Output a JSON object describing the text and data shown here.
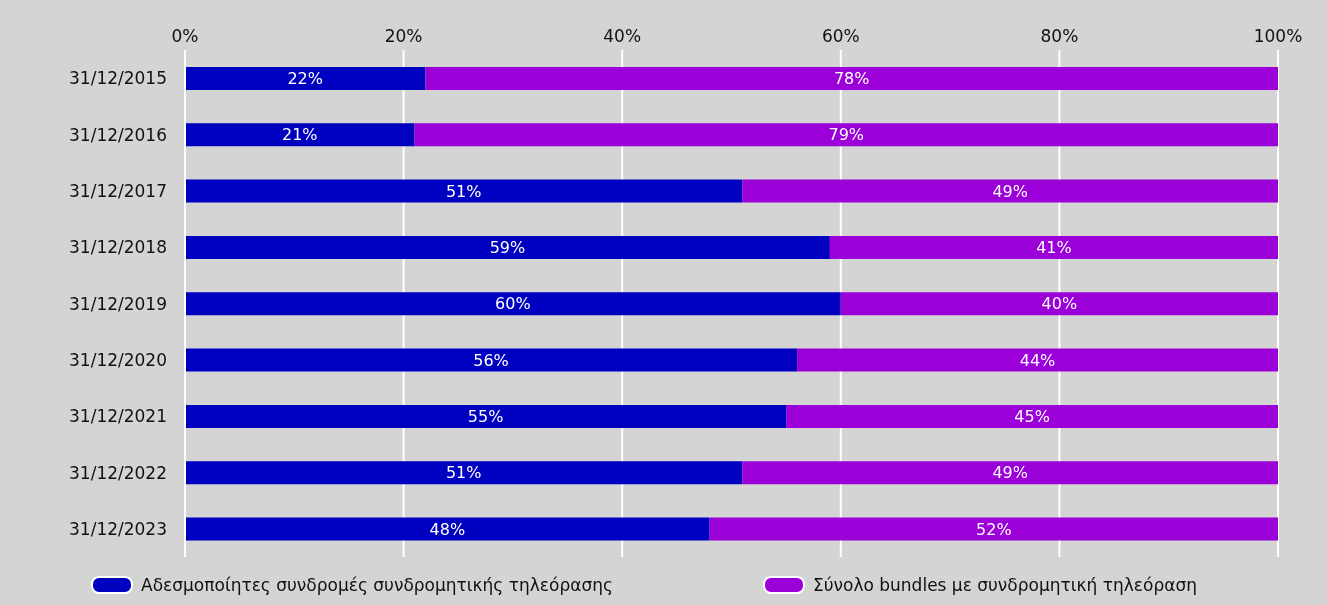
{
  "chart_data": {
    "type": "bar",
    "orientation": "horizontal",
    "stacked": true,
    "categories": [
      "31/12/2015",
      "31/12/2016",
      "31/12/2017",
      "31/12/2018",
      "31/12/2019",
      "31/12/2020",
      "31/12/2021",
      "31/12/2022",
      "31/12/2023"
    ],
    "series": [
      {
        "name": "Αδεσμοποίητες συνδρομές συνδρομητικής τηλεόρασης",
        "color": "#0000c0",
        "values": [
          22,
          21,
          51,
          59,
          60,
          56,
          55,
          51,
          48
        ],
        "value_labels": [
          "22%",
          "21%",
          "51%",
          "59%",
          "60%",
          "56%",
          "55%",
          "51%",
          "48%"
        ]
      },
      {
        "name": "Σύνολο bundles με συνδρομητική τηλεόραση",
        "color": "#9b00d9",
        "values": [
          78,
          79,
          49,
          41,
          40,
          44,
          45,
          49,
          52
        ],
        "value_labels": [
          "78%",
          "79%",
          "49%",
          "41%",
          "40%",
          "44%",
          "45%",
          "49%",
          "52%"
        ]
      }
    ],
    "xlim": [
      0,
      100
    ],
    "xticks": [
      {
        "value": 0,
        "label": "0%"
      },
      {
        "value": 20,
        "label": "20%"
      },
      {
        "value": 40,
        "label": "40%"
      },
      {
        "value": 60,
        "label": "60%"
      },
      {
        "value": 80,
        "label": "80%"
      },
      {
        "value": 100,
        "label": "100%"
      }
    ],
    "grid": "x",
    "legend": "bottom"
  }
}
